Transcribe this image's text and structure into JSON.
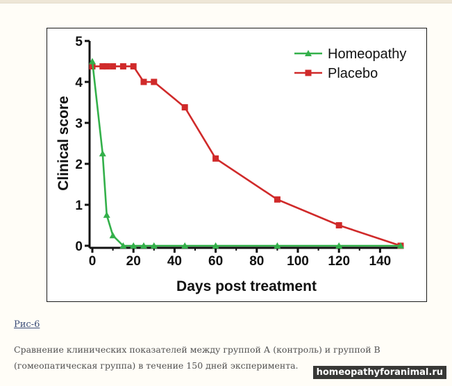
{
  "chart_data": {
    "type": "line",
    "xlabel": "Days post treatment",
    "ylabel": "Clinical score",
    "xlim": [
      0,
      150
    ],
    "ylim": [
      0,
      5
    ],
    "xticks": [
      0,
      20,
      40,
      60,
      80,
      100,
      120,
      140
    ],
    "yticks": [
      0,
      1,
      2,
      3,
      4,
      5
    ],
    "legend_position": "top-right",
    "grid": false,
    "series": [
      {
        "name": "Homeopathy",
        "color": "#33b04a",
        "marker": "triangle",
        "x": [
          0,
          5,
          7,
          10,
          15,
          20,
          25,
          30,
          45,
          60,
          90,
          120,
          150
        ],
        "y": [
          4.5,
          2.25,
          0.75,
          0.25,
          0,
          0,
          0,
          0,
          0,
          0,
          0,
          0,
          0
        ]
      },
      {
        "name": "Placebo",
        "color": "#d02a2a",
        "marker": "square",
        "x": [
          0,
          5,
          7,
          10,
          15,
          20,
          25,
          30,
          45,
          60,
          90,
          120,
          150
        ],
        "y": [
          4.38,
          4.38,
          4.38,
          4.38,
          4.38,
          4.38,
          4.0,
          4.0,
          3.38,
          2.13,
          1.13,
          0.5,
          0
        ]
      }
    ]
  },
  "caption": {
    "link_label": "Рис-6",
    "text": "Сравнение клинических показателей между группой А (контроль) и группой В (гомеопатическая группа) в течение 150 дней эксперимента."
  },
  "watermark": "homeopathyforanimal.ru"
}
